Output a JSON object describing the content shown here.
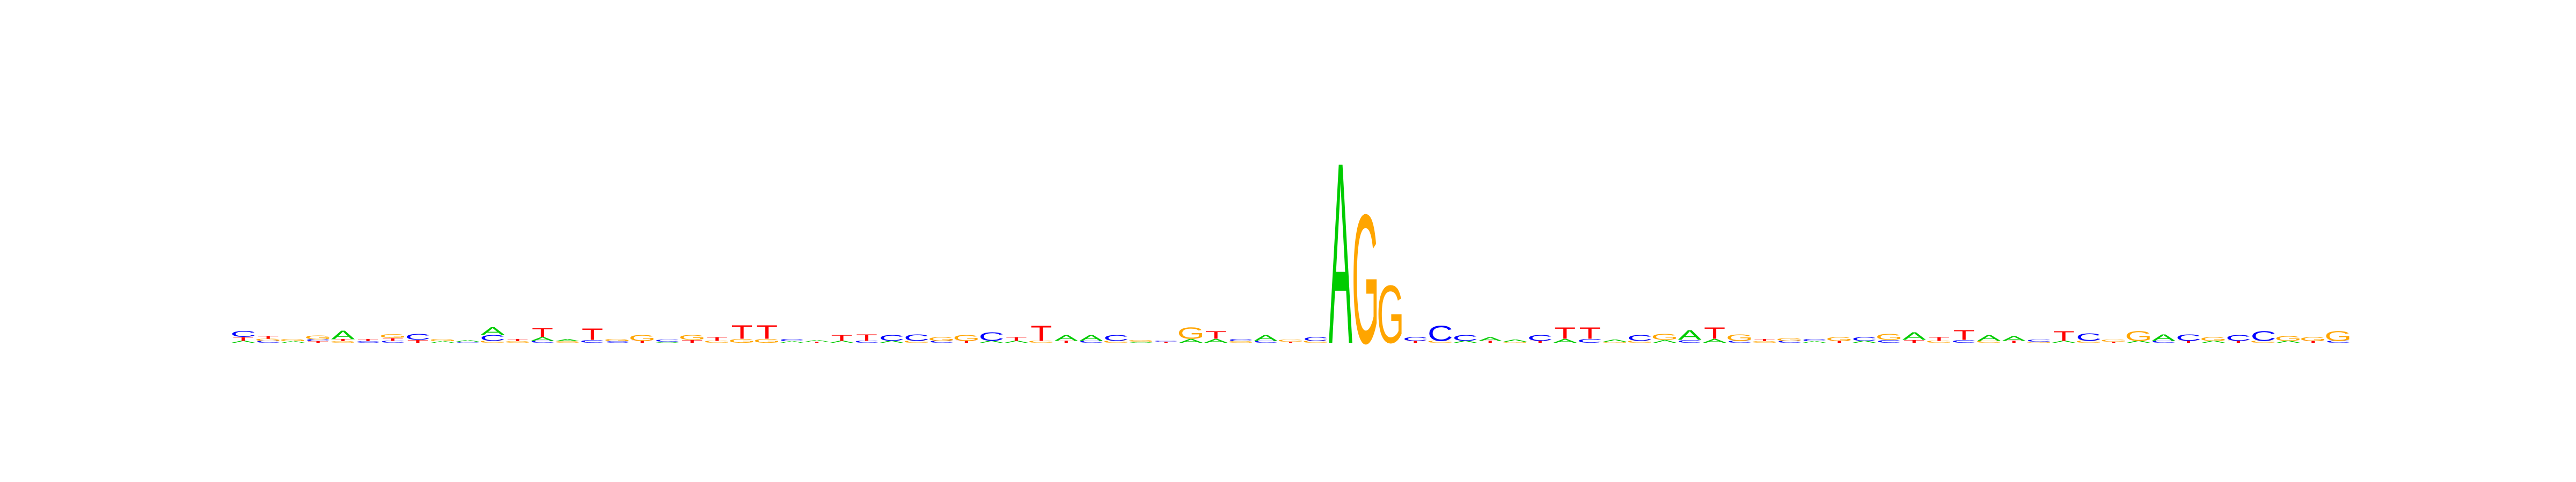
{
  "figure": {
    "kind": "sequence-logo",
    "alphabet": [
      "A",
      "C",
      "G",
      "T"
    ]
  },
  "colors": {
    "A": "#00cc00",
    "C": "#0000ff",
    "G": "#ffa500",
    "T": "#ff0000",
    "background": "#ffffff"
  },
  "chart_data": {
    "type": "sequence-logo",
    "title": "",
    "xlabel": "",
    "ylabel": "",
    "alphabet": [
      "A",
      "C",
      "G",
      "T"
    ],
    "ylim": [
      0,
      1.0
    ],
    "positions": [
      [
        {
          "b": "C",
          "h": 0.03
        },
        {
          "b": "T",
          "h": 0.02
        },
        {
          "b": "A",
          "h": 0.01
        }
      ],
      [
        {
          "b": "T",
          "h": 0.015
        },
        {
          "b": "C",
          "h": 0.01
        },
        {
          "b": "G",
          "h": 0.01
        }
      ],
      [
        {
          "b": "G",
          "h": 0.01
        },
        {
          "b": "A",
          "h": 0.008
        }
      ],
      [
        {
          "b": "G",
          "h": 0.02
        },
        {
          "b": "C",
          "h": 0.01
        },
        {
          "b": "T",
          "h": 0.008
        }
      ],
      [
        {
          "b": "A",
          "h": 0.045
        },
        {
          "b": "T",
          "h": 0.01
        },
        {
          "b": "G",
          "h": 0.008
        }
      ],
      [
        {
          "b": "T",
          "h": 0.01
        },
        {
          "b": "C",
          "h": 0.008
        }
      ],
      [
        {
          "b": "G",
          "h": 0.02
        },
        {
          "b": "T",
          "h": 0.015
        },
        {
          "b": "C",
          "h": 0.01
        }
      ],
      [
        {
          "b": "C",
          "h": 0.03
        },
        {
          "b": "T",
          "h": 0.015
        }
      ],
      [
        {
          "b": "G",
          "h": 0.01
        },
        {
          "b": "A",
          "h": 0.008
        }
      ],
      [
        {
          "b": "A",
          "h": 0.008
        },
        {
          "b": "C",
          "h": 0.006
        }
      ],
      [
        {
          "b": "A",
          "h": 0.04
        },
        {
          "b": "C",
          "h": 0.03
        },
        {
          "b": "G",
          "h": 0.01
        }
      ],
      [
        {
          "b": "T",
          "h": 0.01
        },
        {
          "b": "G",
          "h": 0.008
        }
      ],
      [
        {
          "b": "T",
          "h": 0.045
        },
        {
          "b": "A",
          "h": 0.02
        },
        {
          "b": "C",
          "h": 0.01
        }
      ],
      [
        {
          "b": "A",
          "h": 0.01
        },
        {
          "b": "G",
          "h": 0.008
        }
      ],
      [
        {
          "b": "T",
          "h": 0.06
        },
        {
          "b": "C",
          "h": 0.015
        }
      ],
      [
        {
          "b": "G",
          "h": 0.01
        },
        {
          "b": "C",
          "h": 0.008
        }
      ],
      [
        {
          "b": "G",
          "h": 0.03
        },
        {
          "b": "T",
          "h": 0.01
        }
      ],
      [
        {
          "b": "C",
          "h": 0.01
        },
        {
          "b": "A",
          "h": 0.006
        }
      ],
      [
        {
          "b": "G",
          "h": 0.025
        },
        {
          "b": "T",
          "h": 0.015
        }
      ],
      [
        {
          "b": "T",
          "h": 0.02
        },
        {
          "b": "G",
          "h": 0.01
        }
      ],
      [
        {
          "b": "T",
          "h": 0.07
        },
        {
          "b": "G",
          "h": 0.02
        }
      ],
      [
        {
          "b": "T",
          "h": 0.07
        },
        {
          "b": "G",
          "h": 0.02
        }
      ],
      [
        {
          "b": "C",
          "h": 0.01
        },
        {
          "b": "A",
          "h": 0.008
        }
      ],
      [
        {
          "b": "A",
          "h": 0.008
        },
        {
          "b": "T",
          "h": 0.006
        }
      ],
      [
        {
          "b": "T",
          "h": 0.03
        },
        {
          "b": "A",
          "h": 0.01
        }
      ],
      [
        {
          "b": "T",
          "h": 0.035
        },
        {
          "b": "C",
          "h": 0.01
        }
      ],
      [
        {
          "b": "C",
          "h": 0.03
        },
        {
          "b": "A",
          "h": 0.01
        }
      ],
      [
        {
          "b": "C",
          "h": 0.035
        },
        {
          "b": "G",
          "h": 0.01
        }
      ],
      [
        {
          "b": "G",
          "h": 0.02
        },
        {
          "b": "C",
          "h": 0.01
        }
      ],
      [
        {
          "b": "G",
          "h": 0.03
        },
        {
          "b": "T",
          "h": 0.01
        }
      ],
      [
        {
          "b": "C",
          "h": 0.045
        },
        {
          "b": "A",
          "h": 0.01
        }
      ],
      [
        {
          "b": "T",
          "h": 0.02
        },
        {
          "b": "A",
          "h": 0.01
        }
      ],
      [
        {
          "b": "T",
          "h": 0.08
        },
        {
          "b": "G",
          "h": 0.01
        }
      ],
      [
        {
          "b": "A",
          "h": 0.03
        },
        {
          "b": "T",
          "h": 0.01
        }
      ],
      [
        {
          "b": "A",
          "h": 0.03
        },
        {
          "b": "C",
          "h": 0.01
        }
      ],
      [
        {
          "b": "C",
          "h": 0.03
        },
        {
          "b": "G",
          "h": 0.01
        }
      ],
      [
        {
          "b": "G",
          "h": 0.008
        },
        {
          "b": "A",
          "h": 0.006
        }
      ],
      [
        {
          "b": "C",
          "h": 0.006
        },
        {
          "b": "T",
          "h": 0.005
        }
      ],
      [
        {
          "b": "G",
          "h": 0.06
        },
        {
          "b": "A",
          "h": 0.02
        }
      ],
      [
        {
          "b": "T",
          "h": 0.04
        },
        {
          "b": "A",
          "h": 0.02
        }
      ],
      [
        {
          "b": "C",
          "h": 0.01
        },
        {
          "b": "G",
          "h": 0.008
        }
      ],
      [
        {
          "b": "A",
          "h": 0.03
        },
        {
          "b": "C",
          "h": 0.01
        }
      ],
      [
        {
          "b": "G",
          "h": 0.01
        },
        {
          "b": "T",
          "h": 0.006
        }
      ],
      [
        {
          "b": "C",
          "h": 0.02
        },
        {
          "b": "G",
          "h": 0.01
        }
      ],
      [
        {
          "b": "A",
          "h": 0.94
        }
      ],
      [
        {
          "b": "G",
          "h": 0.67
        }
      ],
      [
        {
          "b": "G",
          "h": 0.3
        }
      ],
      [
        {
          "b": "C",
          "h": 0.02
        },
        {
          "b": "T",
          "h": 0.01
        }
      ],
      [
        {
          "b": "C",
          "h": 0.08
        },
        {
          "b": "G",
          "h": 0.01
        }
      ],
      [
        {
          "b": "C",
          "h": 0.03
        },
        {
          "b": "A",
          "h": 0.01
        }
      ],
      [
        {
          "b": "A",
          "h": 0.02
        },
        {
          "b": "T",
          "h": 0.01
        }
      ],
      [
        {
          "b": "A",
          "h": 0.01
        },
        {
          "b": "G",
          "h": 0.006
        }
      ],
      [
        {
          "b": "C",
          "h": 0.03
        },
        {
          "b": "T",
          "h": 0.01
        }
      ],
      [
        {
          "b": "T",
          "h": 0.06
        },
        {
          "b": "A",
          "h": 0.02
        }
      ],
      [
        {
          "b": "T",
          "h": 0.06
        },
        {
          "b": "C",
          "h": 0.02
        }
      ],
      [
        {
          "b": "A",
          "h": 0.01
        },
        {
          "b": "G",
          "h": 0.006
        }
      ],
      [
        {
          "b": "C",
          "h": 0.03
        },
        {
          "b": "G",
          "h": 0.01
        }
      ],
      [
        {
          "b": "G",
          "h": 0.03
        },
        {
          "b": "A",
          "h": 0.015
        }
      ],
      [
        {
          "b": "A",
          "h": 0.05
        },
        {
          "b": "C",
          "h": 0.015
        }
      ],
      [
        {
          "b": "T",
          "h": 0.06
        },
        {
          "b": "A",
          "h": 0.02
        }
      ],
      [
        {
          "b": "G",
          "h": 0.035
        },
        {
          "b": "C",
          "h": 0.01
        }
      ],
      [
        {
          "b": "T",
          "h": 0.01
        },
        {
          "b": "G",
          "h": 0.008
        }
      ],
      [
        {
          "b": "G",
          "h": 0.015
        },
        {
          "b": "C",
          "h": 0.01
        }
      ],
      [
        {
          "b": "C",
          "h": 0.01
        },
        {
          "b": "A",
          "h": 0.008
        }
      ],
      [
        {
          "b": "G",
          "h": 0.02
        },
        {
          "b": "T",
          "h": 0.01
        }
      ],
      [
        {
          "b": "C",
          "h": 0.02
        },
        {
          "b": "A",
          "h": 0.01
        }
      ],
      [
        {
          "b": "G",
          "h": 0.03
        },
        {
          "b": "C",
          "h": 0.015
        }
      ],
      [
        {
          "b": "A",
          "h": 0.04
        },
        {
          "b": "T",
          "h": 0.015
        }
      ],
      [
        {
          "b": "T",
          "h": 0.02
        },
        {
          "b": "G",
          "h": 0.01
        }
      ],
      [
        {
          "b": "T",
          "h": 0.05
        },
        {
          "b": "C",
          "h": 0.015
        }
      ],
      [
        {
          "b": "A",
          "h": 0.03
        },
        {
          "b": "G",
          "h": 0.01
        }
      ],
      [
        {
          "b": "A",
          "h": 0.025
        },
        {
          "b": "T",
          "h": 0.01
        }
      ],
      [
        {
          "b": "C",
          "h": 0.01
        },
        {
          "b": "G",
          "h": 0.006
        }
      ],
      [
        {
          "b": "T",
          "h": 0.05
        },
        {
          "b": "A",
          "h": 0.01
        }
      ],
      [
        {
          "b": "C",
          "h": 0.04
        },
        {
          "b": "G",
          "h": 0.01
        }
      ],
      [
        {
          "b": "G",
          "h": 0.01
        },
        {
          "b": "T",
          "h": 0.006
        }
      ],
      [
        {
          "b": "G",
          "h": 0.05
        },
        {
          "b": "A",
          "h": 0.01
        }
      ],
      [
        {
          "b": "A",
          "h": 0.035
        },
        {
          "b": "C",
          "h": 0.01
        }
      ],
      [
        {
          "b": "C",
          "h": 0.035
        },
        {
          "b": "T",
          "h": 0.01
        }
      ],
      [
        {
          "b": "G",
          "h": 0.02
        },
        {
          "b": "A",
          "h": 0.01
        }
      ],
      [
        {
          "b": "C",
          "h": 0.03
        },
        {
          "b": "T",
          "h": 0.01
        }
      ],
      [
        {
          "b": "C",
          "h": 0.05
        },
        {
          "b": "G",
          "h": 0.01
        }
      ],
      [
        {
          "b": "G",
          "h": 0.025
        },
        {
          "b": "A",
          "h": 0.01
        }
      ],
      [
        {
          "b": "G",
          "h": 0.02
        },
        {
          "b": "T",
          "h": 0.01
        }
      ],
      [
        {
          "b": "G",
          "h": 0.05
        },
        {
          "b": "C",
          "h": 0.01
        }
      ]
    ]
  }
}
